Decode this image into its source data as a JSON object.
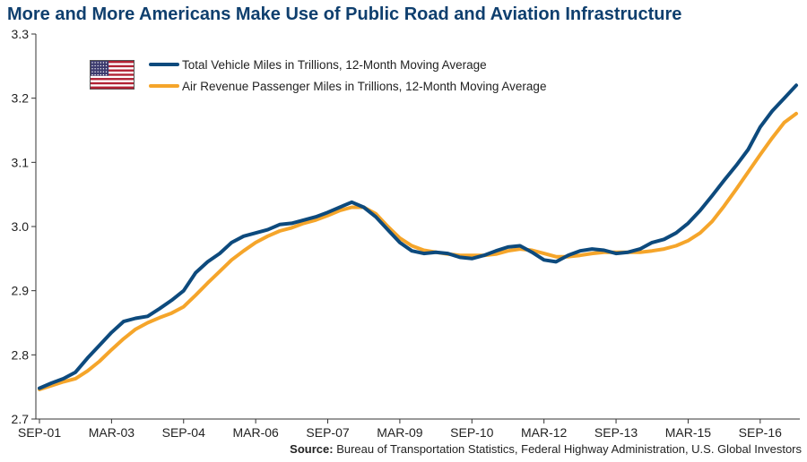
{
  "title": "More and More Americans Make Use of Public Road and Aviation Infrastructure",
  "source_label": "Source:",
  "source_text": "Bureau of Transportation Statistics, Federal Highway Administration, U.S. Global Investors",
  "colors": {
    "title": "#0f3f6e",
    "vehicle": "#0d4a7d",
    "air": "#f5a52a"
  },
  "chart_data": {
    "type": "line",
    "xlabel": "",
    "ylabel": "",
    "ylim": [
      2.7,
      3.3
    ],
    "yticks": [
      "2.7",
      "2.8",
      "2.9",
      "3.0",
      "3.1",
      "3.2",
      "3.3"
    ],
    "xticks": [
      "SEP-01",
      "MAR-03",
      "SEP-04",
      "MAR-06",
      "SEP-07",
      "MAR-09",
      "SEP-10",
      "MAR-12",
      "SEP-13",
      "MAR-15",
      "SEP-16"
    ],
    "xtick_months": [
      0,
      18,
      36,
      54,
      72,
      90,
      108,
      126,
      144,
      162,
      180
    ],
    "x_start": "2001-03",
    "x_end": "2016-12",
    "grid": false,
    "legend_position": "top-left",
    "legend_icon": "us-flag-icon",
    "series": [
      {
        "name": "Total Vehicle Miles in Trillions, 12-Month Moving Average",
        "x": [
          "2001-03",
          "2001-06",
          "2001-09",
          "2001-12",
          "2002-03",
          "2002-06",
          "2002-09",
          "2002-12",
          "2003-03",
          "2003-06",
          "2003-09",
          "2003-12",
          "2004-03",
          "2004-06",
          "2004-09",
          "2004-12",
          "2005-03",
          "2005-06",
          "2005-09",
          "2005-12",
          "2006-03",
          "2006-06",
          "2006-09",
          "2006-12",
          "2007-03",
          "2007-06",
          "2007-09",
          "2007-12",
          "2008-03",
          "2008-06",
          "2008-09",
          "2008-12",
          "2009-03",
          "2009-06",
          "2009-09",
          "2009-12",
          "2010-03",
          "2010-06",
          "2010-09",
          "2010-12",
          "2011-03",
          "2011-06",
          "2011-09",
          "2011-12",
          "2012-03",
          "2012-06",
          "2012-09",
          "2012-12",
          "2013-03",
          "2013-06",
          "2013-09",
          "2013-12",
          "2014-03",
          "2014-06",
          "2014-09",
          "2014-12",
          "2015-03",
          "2015-06",
          "2015-09",
          "2015-12",
          "2016-03",
          "2016-06",
          "2016-09",
          "2016-12"
        ],
        "values": [
          2.748,
          2.756,
          2.763,
          2.773,
          2.795,
          2.815,
          2.835,
          2.852,
          2.857,
          2.86,
          2.872,
          2.885,
          2.9,
          2.928,
          2.945,
          2.958,
          2.975,
          2.985,
          2.99,
          2.995,
          3.003,
          3.005,
          3.01,
          3.015,
          3.022,
          3.03,
          3.038,
          3.03,
          3.015,
          2.995,
          2.975,
          2.962,
          2.958,
          2.96,
          2.958,
          2.952,
          2.95,
          2.955,
          2.962,
          2.968,
          2.97,
          2.96,
          2.948,
          2.945,
          2.955,
          2.962,
          2.965,
          2.963,
          2.958,
          2.96,
          2.965,
          2.975,
          2.98,
          2.99,
          3.005,
          3.025,
          3.048,
          3.072,
          3.095,
          3.12,
          3.155,
          3.18,
          3.2,
          3.22
        ]
      },
      {
        "name": "Air Revenue Passenger Miles in Trillions, 12-Month Moving Average",
        "x": [
          "2001-03",
          "2001-06",
          "2001-09",
          "2001-12",
          "2002-03",
          "2002-06",
          "2002-09",
          "2002-12",
          "2003-03",
          "2003-06",
          "2003-09",
          "2003-12",
          "2004-03",
          "2004-06",
          "2004-09",
          "2004-12",
          "2005-03",
          "2005-06",
          "2005-09",
          "2005-12",
          "2006-03",
          "2006-06",
          "2006-09",
          "2006-12",
          "2007-03",
          "2007-06",
          "2007-09",
          "2007-12",
          "2008-03",
          "2008-06",
          "2008-09",
          "2008-12",
          "2009-03",
          "2009-06",
          "2009-09",
          "2009-12",
          "2010-03",
          "2010-06",
          "2010-09",
          "2010-12",
          "2011-03",
          "2011-06",
          "2011-09",
          "2011-12",
          "2012-03",
          "2012-06",
          "2012-09",
          "2012-12",
          "2013-03",
          "2013-06",
          "2013-09",
          "2013-12",
          "2014-03",
          "2014-06",
          "2014-09",
          "2014-12",
          "2015-03",
          "2015-06",
          "2015-09",
          "2015-12",
          "2016-03",
          "2016-06",
          "2016-09",
          "2016-12"
        ],
        "values": [
          2.746,
          2.752,
          2.758,
          2.763,
          2.775,
          2.79,
          2.808,
          2.825,
          2.84,
          2.85,
          2.858,
          2.865,
          2.875,
          2.893,
          2.912,
          2.93,
          2.948,
          2.962,
          2.975,
          2.985,
          2.993,
          2.998,
          3.005,
          3.01,
          3.017,
          3.025,
          3.03,
          3.03,
          3.02,
          3.0,
          2.982,
          2.97,
          2.963,
          2.96,
          2.957,
          2.955,
          2.955,
          2.955,
          2.957,
          2.962,
          2.965,
          2.963,
          2.958,
          2.953,
          2.953,
          2.955,
          2.958,
          2.96,
          2.96,
          2.96,
          2.96,
          2.962,
          2.965,
          2.97,
          2.978,
          2.99,
          3.008,
          3.032,
          3.058,
          3.085,
          3.112,
          3.138,
          3.162,
          3.176
        ]
      }
    ]
  }
}
